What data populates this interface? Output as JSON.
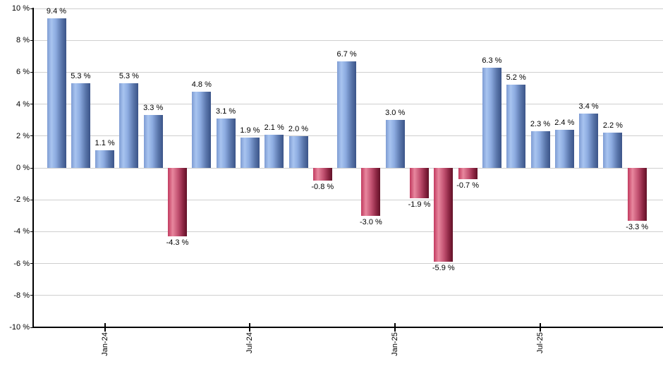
{
  "chart_data": {
    "type": "bar",
    "title": "",
    "unit": "%",
    "values": [
      9.4,
      5.3,
      1.1,
      5.3,
      3.3,
      -4.3,
      4.8,
      3.1,
      1.9,
      2.1,
      2.0,
      -0.8,
      6.7,
      -3.0,
      3.0,
      -1.9,
      -5.9,
      -0.7,
      6.3,
      5.2,
      2.3,
      2.4,
      3.4,
      2.2,
      -3.3
    ],
    "bar_labels": [
      "9.4 %",
      "5.3 %",
      "1.1 %",
      "5.3 %",
      "3.3 %",
      "-4.3 %",
      "4.8 %",
      "3.1 %",
      "1.9 %",
      "2.1 %",
      "2.0 %",
      "-0.8 %",
      "6.7 %",
      "-3.0 %",
      "3.0 %",
      "-1.9 %",
      "-5.9 %",
      "-0.7 %",
      "6.3 %",
      "5.2 %",
      "2.3 %",
      "2.4 %",
      "3.4 %",
      "2.2 %",
      "-3.3 %"
    ],
    "x_ticks": [
      {
        "bar_index": 2,
        "label": "Jan-24"
      },
      {
        "bar_index": 8,
        "label": "Jul-24"
      },
      {
        "bar_index": 14,
        "label": "Jan-25"
      },
      {
        "bar_index": 20,
        "label": "Jul-25"
      }
    ],
    "y_ticks": [
      {
        "value": 10,
        "label": "10 %"
      },
      {
        "value": 8,
        "label": "8 %"
      },
      {
        "value": 6,
        "label": "6 %"
      },
      {
        "value": 4,
        "label": "4 %"
      },
      {
        "value": 2,
        "label": "2 %"
      },
      {
        "value": 0,
        "label": "0 %"
      },
      {
        "value": -2,
        "label": "-2 %"
      },
      {
        "value": -4,
        "label": "-4 %"
      },
      {
        "value": -6,
        "label": "-6 %"
      },
      {
        "value": -8,
        "label": "-8 %"
      },
      {
        "value": -10,
        "label": "-10 %"
      }
    ],
    "ylim": [
      -10,
      10
    ],
    "grid": true,
    "legend": "none",
    "colors": {
      "positive_bar_mid": "#8CABE0",
      "positive_bar_light": "#A8C4F0",
      "positive_bar_dark": "#3B5488",
      "negative_bar_mid": "#C04F6F",
      "negative_bar_light": "#E8879E",
      "negative_bar_dark": "#611127",
      "gridline": "#CFCFCF",
      "axis": "#000000",
      "label_text": "#000000",
      "background": "#FFFFFF"
    }
  }
}
